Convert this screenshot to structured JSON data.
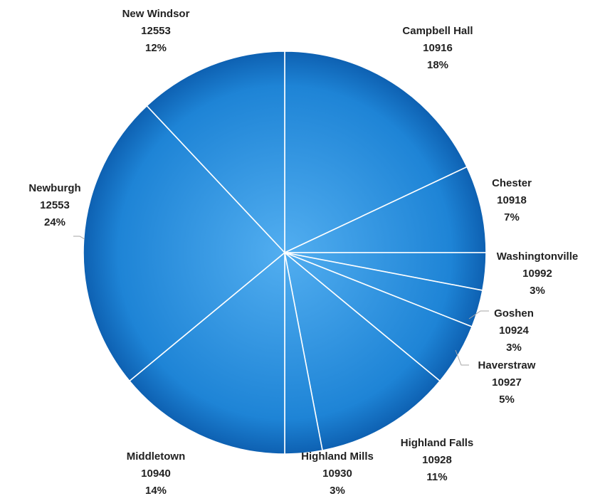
{
  "chart_data": {
    "type": "pie",
    "title": "",
    "start_angle_deg": 0,
    "direction": "clockwise",
    "colors": {
      "slice": "#1e84d6",
      "slice_light": "#52aef0",
      "slice_dark": "#0d5fb0",
      "separator": "#ffffff",
      "text": "#222222"
    },
    "slices": [
      {
        "name": "Campbell Hall",
        "code": "10916",
        "percent_label": "18%",
        "value": 18
      },
      {
        "name": "Chester",
        "code": "10918",
        "percent_label": "7%",
        "value": 7
      },
      {
        "name": "Washingtonville",
        "code": "10992",
        "percent_label": "3%",
        "value": 3
      },
      {
        "name": "Goshen",
        "code": "10924",
        "percent_label": "3%",
        "value": 3
      },
      {
        "name": "Haverstraw",
        "code": "10927",
        "percent_label": "5%",
        "value": 5
      },
      {
        "name": "Highland Falls",
        "code": "10928",
        "percent_label": "11%",
        "value": 11
      },
      {
        "name": "Highland  Mills",
        "code": "10930",
        "percent_label": "3%",
        "value": 3
      },
      {
        "name": "Middletown",
        "code": "10940",
        "percent_label": "14%",
        "value": 14
      },
      {
        "name": "Newburgh",
        "code": "12553",
        "percent_label": "24%",
        "value": 24
      },
      {
        "name": "New Windsor",
        "code": "12553",
        "percent_label": "12%",
        "value": 12
      }
    ]
  }
}
